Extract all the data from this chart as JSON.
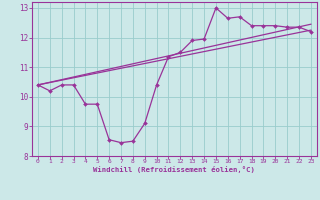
{
  "xlabel": "Windchill (Refroidissement éolien,°C)",
  "background_color": "#cce8e8",
  "line_color": "#993399",
  "grid_color": "#99cccc",
  "xlim": [
    -0.5,
    23.5
  ],
  "ylim": [
    8,
    13.2
  ],
  "yticks": [
    8,
    9,
    10,
    11,
    12,
    13
  ],
  "xticks": [
    0,
    1,
    2,
    3,
    4,
    5,
    6,
    7,
    8,
    9,
    10,
    11,
    12,
    13,
    14,
    15,
    16,
    17,
    18,
    19,
    20,
    21,
    22,
    23
  ],
  "hours": [
    0,
    1,
    2,
    3,
    4,
    5,
    6,
    7,
    8,
    9,
    10,
    11,
    12,
    13,
    14,
    15,
    16,
    17,
    18,
    19,
    20,
    21,
    22,
    23
  ],
  "temp_actual": [
    10.4,
    10.2,
    10.4,
    10.4,
    9.75,
    9.75,
    8.55,
    8.45,
    8.5,
    9.1,
    10.4,
    11.35,
    11.5,
    11.9,
    11.95,
    13.0,
    12.65,
    12.7,
    12.4,
    12.4,
    12.4,
    12.35,
    12.35,
    12.2
  ],
  "trend1_x": [
    0,
    23
  ],
  "trend1_y": [
    10.4,
    12.25
  ],
  "trend2_x": [
    0,
    23
  ],
  "trend2_y": [
    10.4,
    12.45
  ]
}
